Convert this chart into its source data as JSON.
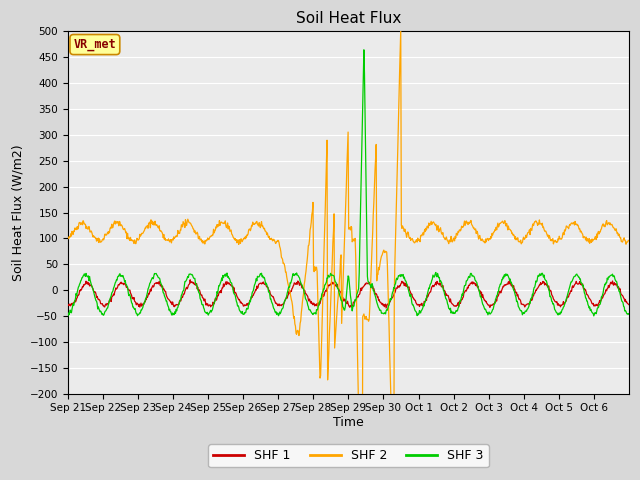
{
  "title": "Soil Heat Flux",
  "xlabel": "Time",
  "ylabel": "Soil Heat Flux (W/m2)",
  "ylim": [
    -200,
    500
  ],
  "yticks": [
    -200,
    -150,
    -100,
    -50,
    0,
    50,
    100,
    150,
    200,
    250,
    300,
    350,
    400,
    450,
    500
  ],
  "shf1_color": "#cc0000",
  "shf2_color": "#ffa500",
  "shf3_color": "#00cc00",
  "legend_label1": "SHF 1",
  "legend_label2": "SHF 2",
  "legend_label3": "SHF 3",
  "annotation_text": "VR_met",
  "annotation_box_color": "#ffff99",
  "annotation_border_color": "#cc8800",
  "bg_color": "#d8d8d8",
  "plot_bg_color": "#ebebeb",
  "title_fontsize": 11,
  "axis_label_fontsize": 9,
  "tick_label_fontsize": 7.5,
  "n_points": 960,
  "xtick_labels": [
    "Sep 21",
    "Sep 22",
    "Sep 23",
    "Sep 24",
    "Sep 25",
    "Sep 26",
    "Sep 27",
    "Sep 28",
    "Sep 29",
    "Sep 30",
    "Oct 1",
    "Oct 2",
    "Oct 3",
    "Oct 4",
    "Oct 5",
    "Oct 6"
  ],
  "line_width": 0.9
}
